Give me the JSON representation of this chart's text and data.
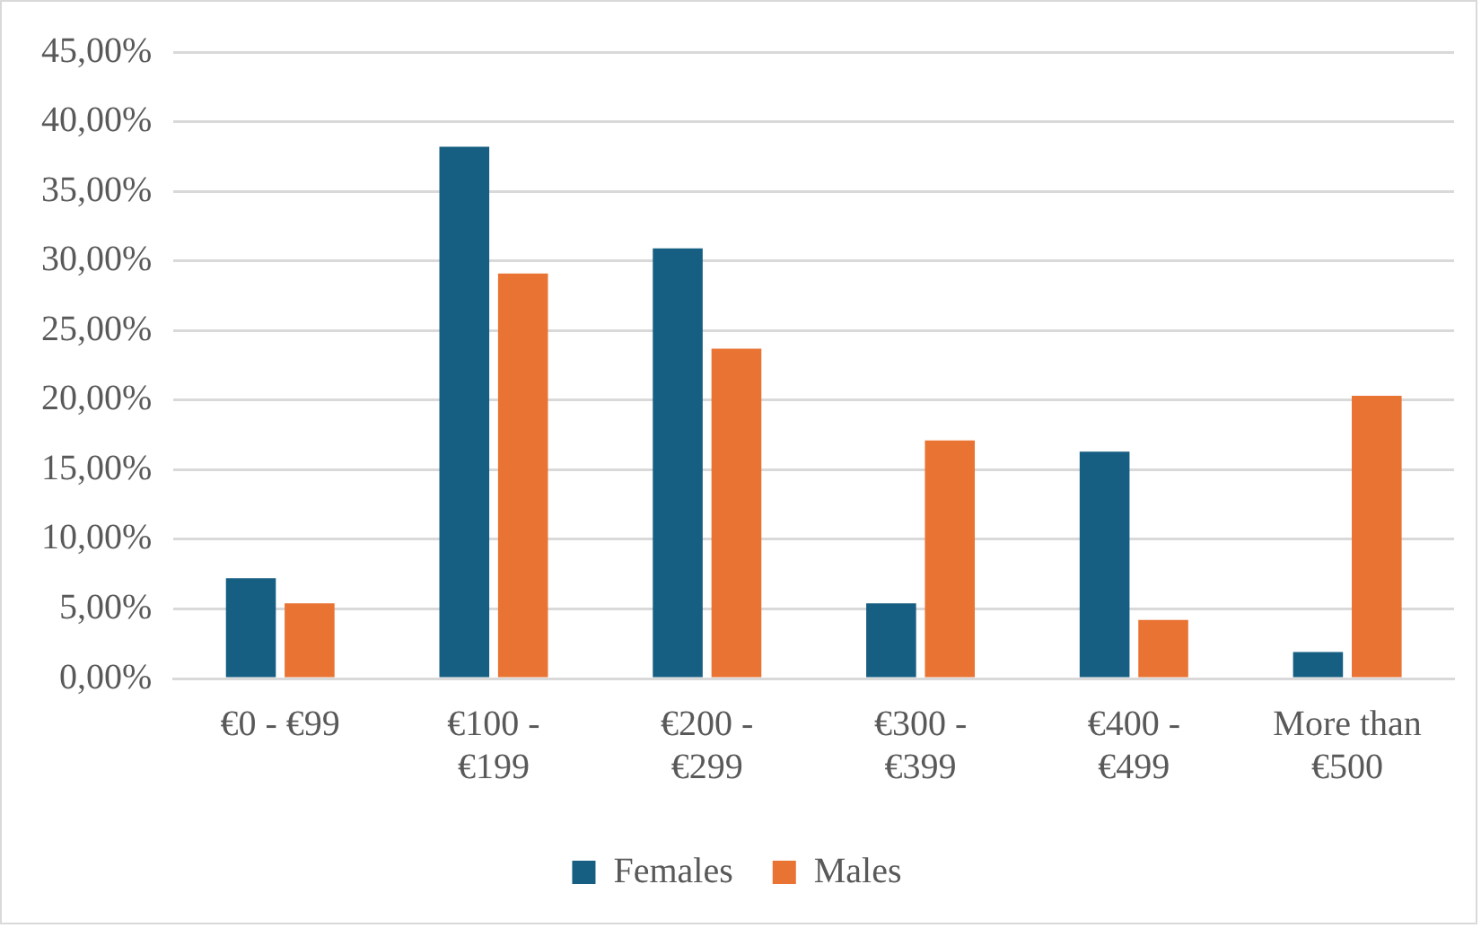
{
  "chart_data": {
    "type": "bar",
    "categories": [
      "€0 - €99",
      "€100 - €199",
      "€200 - €299",
      "€300 - €399",
      "€400 - €499",
      "More than €500"
    ],
    "series": [
      {
        "name": "Females",
        "color": "#175f82",
        "values": [
          7.2,
          38.2,
          30.9,
          5.4,
          16.3,
          1.9
        ]
      },
      {
        "name": "Males",
        "color": "#e97333",
        "values": [
          5.4,
          29.1,
          23.7,
          17.1,
          4.2,
          20.3
        ]
      }
    ],
    "ylim": [
      0,
      45
    ],
    "yticks": [
      {
        "value": 0,
        "label": "0,00%"
      },
      {
        "value": 5,
        "label": "5,00%"
      },
      {
        "value": 10,
        "label": "10,00%"
      },
      {
        "value": 15,
        "label": "15,00%"
      },
      {
        "value": 20,
        "label": "20,00%"
      },
      {
        "value": 25,
        "label": "25,00%"
      },
      {
        "value": 30,
        "label": "30,00%"
      },
      {
        "value": 35,
        "label": "35,00%"
      },
      {
        "value": 40,
        "label": "40,00%"
      },
      {
        "value": 45,
        "label": "45,00%"
      }
    ],
    "grid": "y",
    "legend": "bottom"
  }
}
